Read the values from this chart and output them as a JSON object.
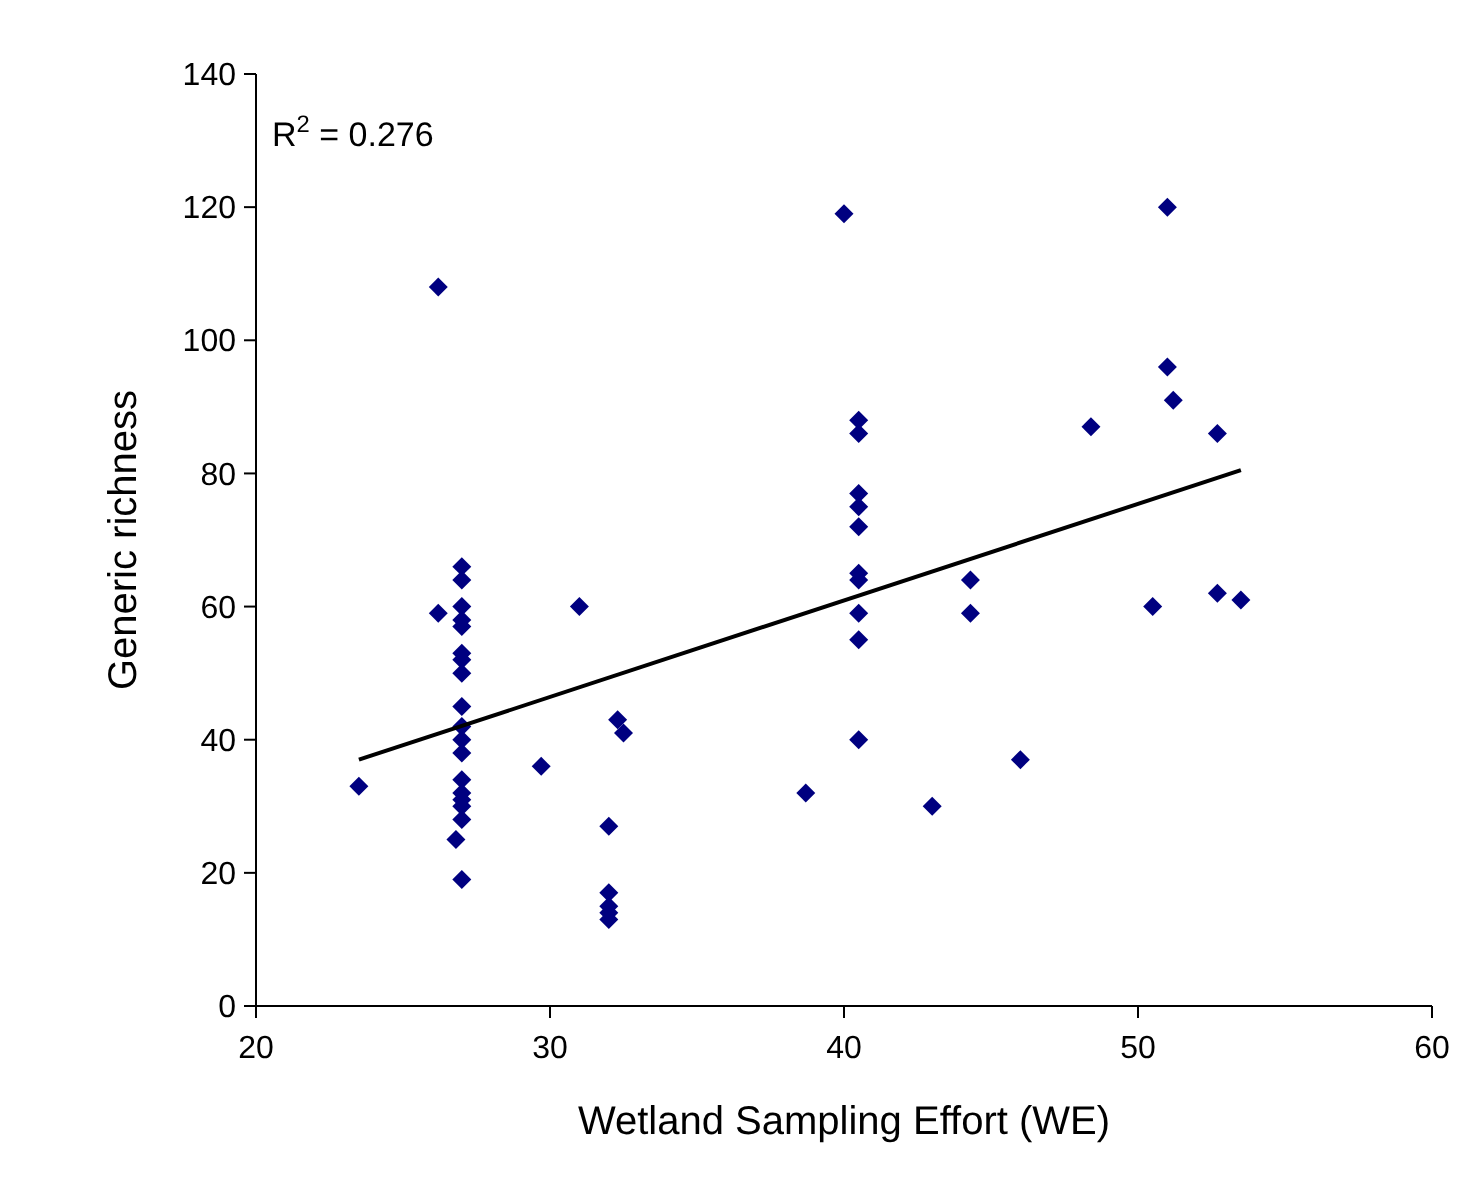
{
  "chart_data": {
    "type": "scatter",
    "xlabel": "Wetland Sampling Effort (WE)",
    "ylabel": "Generic richness",
    "annotations": [
      "R$^{2}$ = 0.276"
    ],
    "xlim": [
      20,
      60
    ],
    "ylim": [
      0,
      140
    ],
    "xticks": [
      20,
      30,
      40,
      50,
      60
    ],
    "yticks": [
      0,
      20,
      40,
      60,
      80,
      100,
      120,
      140
    ],
    "grid": false,
    "marker": "diamond",
    "series": [
      {
        "color": "#000080",
        "x": [
          23.5,
          26.2,
          26.2,
          27,
          27,
          27,
          27,
          27,
          27,
          27,
          27,
          27,
          27,
          27,
          27,
          27,
          27,
          27,
          27,
          27,
          26.8,
          27,
          29.7,
          31,
          32,
          32,
          32,
          32,
          32,
          32.3,
          32.5,
          38.7,
          40,
          40.5,
          40.5,
          40.5,
          40.5,
          40.5,
          40.5,
          40.5,
          40.5,
          40.5,
          40.5,
          43,
          44.3,
          44.3,
          46,
          48.4,
          50.5,
          51,
          51,
          51.2,
          52.7,
          52.7,
          53.5
        ],
        "values": [
          33,
          108,
          59,
          66,
          64,
          60,
          58,
          57,
          53,
          52,
          50,
          45,
          42,
          40,
          38,
          34,
          32,
          31,
          30,
          28,
          25,
          19,
          36,
          60,
          27,
          17,
          15,
          14,
          13,
          43,
          41,
          32,
          119,
          88,
          86,
          77,
          75,
          72,
          65,
          64,
          59,
          55,
          40,
          30,
          64,
          59,
          37,
          87,
          60,
          120,
          96,
          91,
          86,
          62,
          61
        ]
      },
      {
        "type": "line",
        "color": "#000000",
        "line_style": "solid",
        "marker": "none",
        "x": [
          23.5,
          53.5
        ],
        "values": [
          37,
          80.5
        ]
      }
    ]
  }
}
